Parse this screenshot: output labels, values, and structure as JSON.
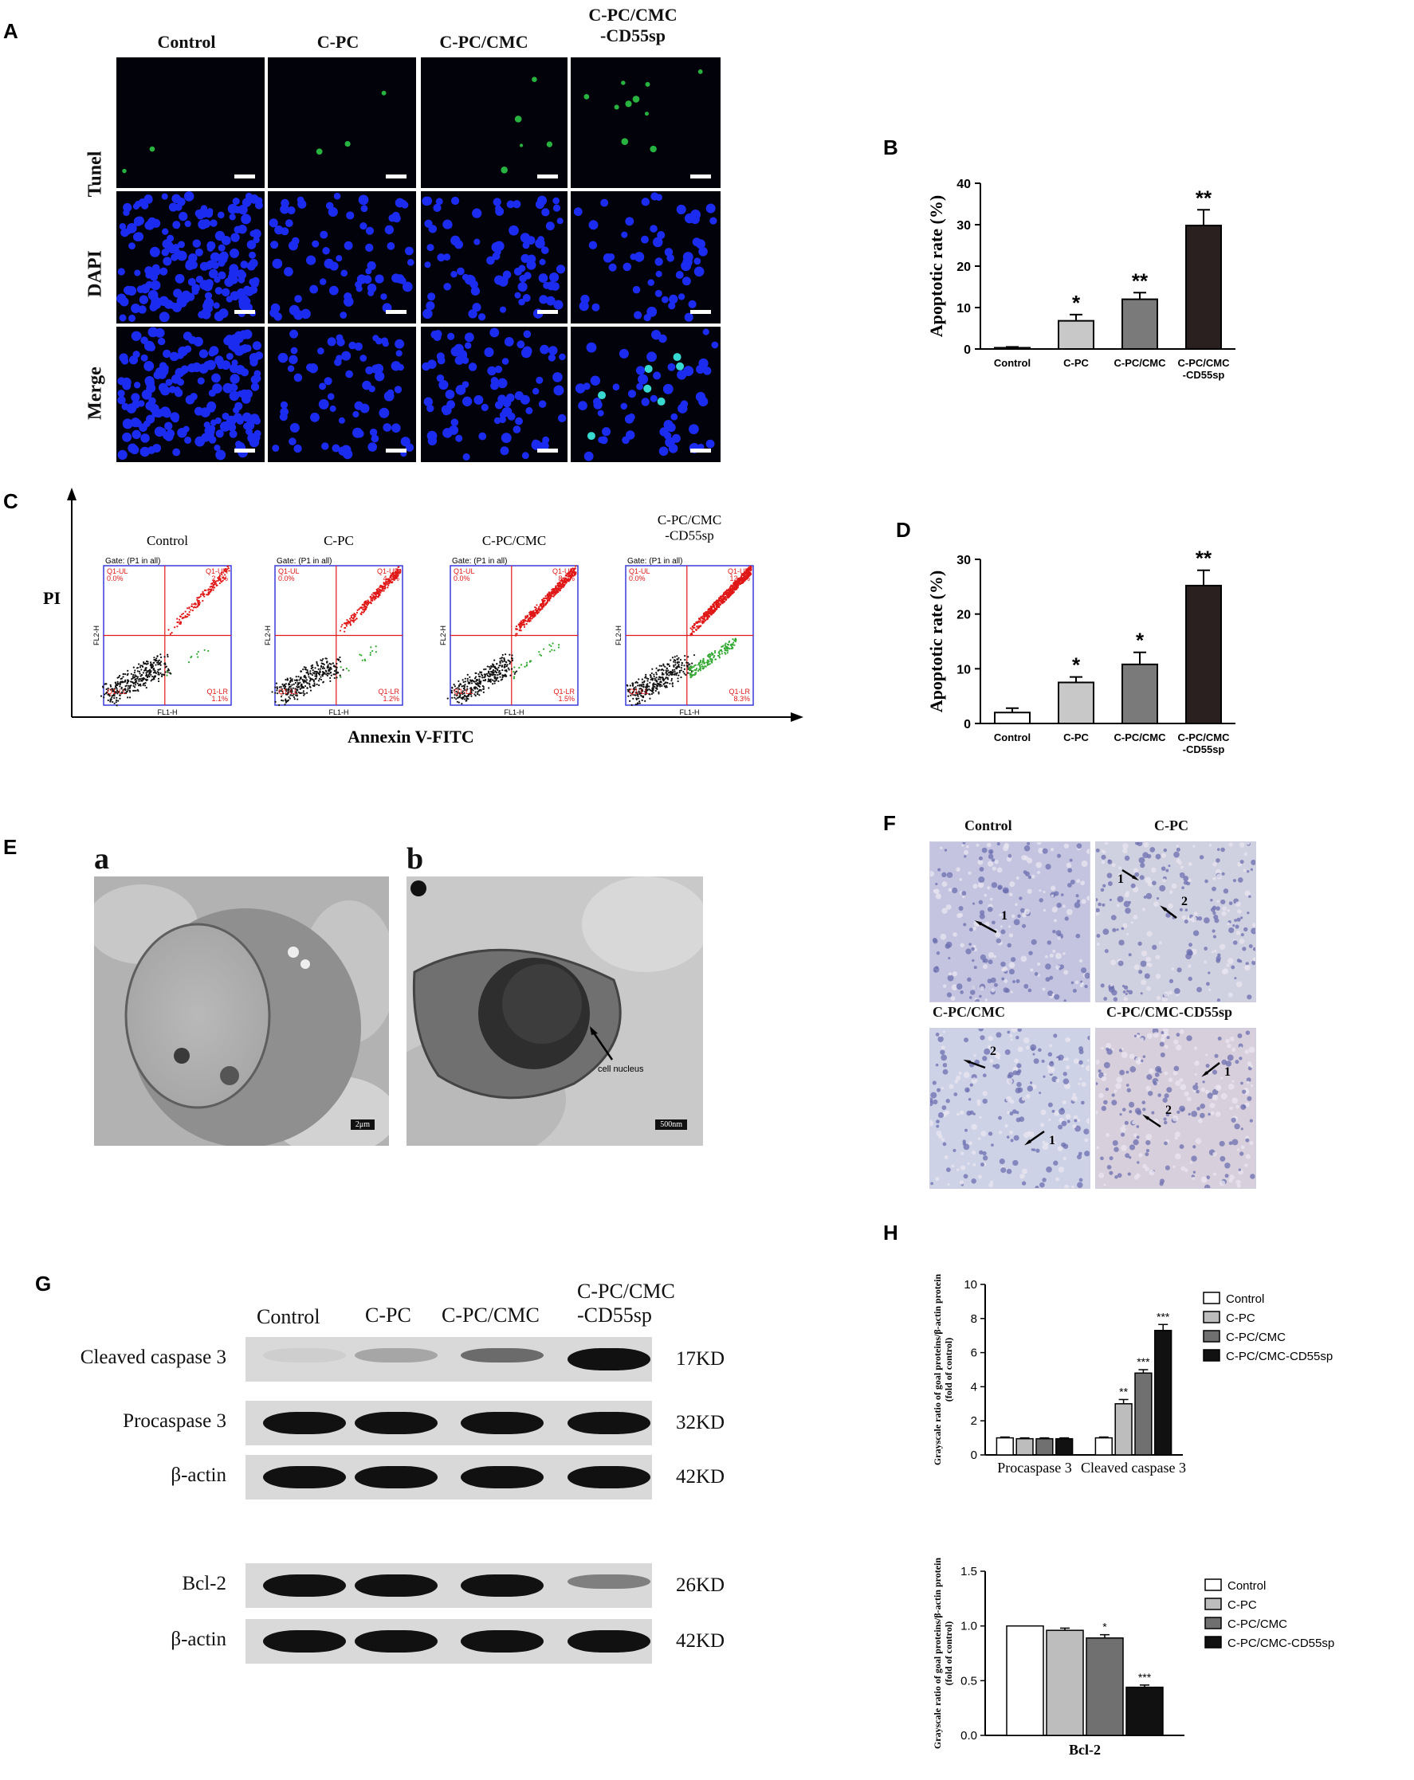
{
  "panels": {
    "A": "A",
    "B": "B",
    "C": "C",
    "D": "D",
    "E": "E",
    "F": "F",
    "G": "G",
    "H": "H"
  },
  "groups": [
    "Control",
    "C-PC",
    "C-PC/CMC",
    "C-PC/CMC\n-CD55sp"
  ],
  "panelA": {
    "rows": [
      "Tunel",
      "DAPI",
      "Merge"
    ],
    "columns": [
      "Control",
      "C-PC",
      "C-PC/CMC",
      "C-PC/CMC\n-CD55sp"
    ]
  },
  "panelB": {
    "chart_data": {
      "type": "bar",
      "categories": [
        "Control",
        "C-PC",
        "C-PC/CMC",
        "C-PC/CMC\n-CD55sp"
      ],
      "values": [
        0.3,
        6.8,
        12.0,
        29.8
      ],
      "errors": [
        0.2,
        1.5,
        1.6,
        3.8
      ],
      "significance": [
        "",
        "*",
        "**",
        "**"
      ],
      "ylabel": "Apoptotic rate (%)",
      "ylim": [
        0,
        40
      ],
      "yticks": [
        0,
        10,
        20,
        30,
        40
      ],
      "colors": [
        "#ffffff",
        "#c8c8c8",
        "#7a7a7a",
        "#2b2020"
      ]
    }
  },
  "panelC": {
    "titles": [
      "Control",
      "C-PC",
      "C-PC/CMC",
      "C-PC/CMC\n-CD55sp"
    ],
    "gate": "Gate: (P1 in all)",
    "ul_label": "Q1-UL",
    "ur_label": "Q1-UR",
    "ll_label": "Q1-LL",
    "lr_label": "Q1-LR",
    "ul_values": [
      "0.0%",
      "0.0%",
      "0.0%",
      "0.0%"
    ],
    "ur_values": [
      "2.6%",
      "4.0%",
      "8.7%",
      "12.1%"
    ],
    "lr_values": [
      "1.1%",
      "1.2%",
      "1.5%",
      "8.3%"
    ],
    "xaxis": "FL1-H",
    "yaxis": "FL2-H",
    "y_title": "PI",
    "x_title": "Annexin V-FITC"
  },
  "panelD": {
    "chart_data": {
      "type": "bar",
      "categories": [
        "Control",
        "C-PC",
        "C-PC/CMC",
        "C-PC/CMC\n-CD55sp"
      ],
      "values": [
        2.0,
        7.5,
        10.8,
        25.2
      ],
      "errors": [
        0.8,
        1.0,
        2.2,
        2.8
      ],
      "significance": [
        "",
        "*",
        "*",
        "**"
      ],
      "ylabel": "Apoptotic rate (%)",
      "ylim": [
        0,
        30
      ],
      "yticks": [
        0,
        10,
        20,
        30
      ],
      "colors": [
        "#ffffff",
        "#c8c8c8",
        "#7a7a7a",
        "#2b2020"
      ]
    }
  },
  "panelE": {
    "sub_a": "a",
    "sub_b": "b",
    "nucleus_label": "cell nucleus",
    "scale_a": "2μm",
    "scale_b": "500nm"
  },
  "panelF": {
    "titles": [
      "Control",
      "C-PC",
      "C-PC/CMC",
      "C-PC/CMC-CD55sp"
    ],
    "arrow_1": "1",
    "arrow_2": "2"
  },
  "panelG": {
    "columns": [
      "Control",
      "C-PC",
      "C-PC/CMC",
      "C-PC/CMC\n-CD55sp"
    ],
    "rows": [
      {
        "label": "Cleaved caspase 3",
        "kd": "17KD"
      },
      {
        "label": "Procaspase 3",
        "kd": "32KD"
      },
      {
        "label": "β-actin",
        "kd": "42KD"
      },
      {
        "label": "Bcl-2",
        "kd": "26KD"
      },
      {
        "label": "β-actin",
        "kd": "42KD"
      }
    ]
  },
  "panelH1": {
    "chart_data": {
      "type": "bar",
      "categories": [
        "Procaspase 3",
        "Cleaved caspase 3"
      ],
      "series": [
        {
          "name": "Control",
          "values": [
            1.0,
            1.0
          ],
          "errors": [
            0.05,
            0.05
          ],
          "sig": [
            "",
            ""
          ]
        },
        {
          "name": "C-PC",
          "values": [
            0.95,
            3.0
          ],
          "errors": [
            0.05,
            0.25
          ],
          "sig": [
            "",
            "**"
          ]
        },
        {
          "name": "C-PC/CMC",
          "values": [
            0.95,
            4.8
          ],
          "errors": [
            0.05,
            0.2
          ],
          "sig": [
            "",
            "***"
          ]
        },
        {
          "name": "C-PC/CMC-CD55sp",
          "values": [
            0.95,
            7.3
          ],
          "errors": [
            0.05,
            0.35
          ],
          "sig": [
            "",
            "***"
          ]
        }
      ],
      "ylabel": "Grayscale ratio of goal proteins/β-actin protein\n(fold of control)",
      "ylim": [
        0,
        10
      ],
      "yticks": [
        0,
        2,
        4,
        6,
        8,
        10
      ],
      "colors": [
        "#ffffff",
        "#bdbdbd",
        "#707070",
        "#111111"
      ]
    }
  },
  "panelH2": {
    "chart_data": {
      "type": "bar",
      "categories": [
        "Bcl-2"
      ],
      "series": [
        {
          "name": "Control",
          "values": [
            1.0
          ],
          "errors": [
            0.0
          ],
          "sig": [
            ""
          ]
        },
        {
          "name": "C-PC",
          "values": [
            0.96
          ],
          "errors": [
            0.02
          ],
          "sig": [
            ""
          ]
        },
        {
          "name": "C-PC/CMC",
          "values": [
            0.89
          ],
          "errors": [
            0.03
          ],
          "sig": [
            "*"
          ]
        },
        {
          "name": "C-PC/CMC-CD55sp",
          "values": [
            0.44
          ],
          "errors": [
            0.02
          ],
          "sig": [
            "***"
          ]
        }
      ],
      "ylabel": "Grayscale ratio of goal proteins/β-actin protein\n(fold of control)",
      "ylim": [
        0,
        1.5
      ],
      "yticks": [
        "0.0",
        "0.5",
        "1.0",
        "1.5"
      ],
      "xlabel": "Bcl-2",
      "colors": [
        "#ffffff",
        "#bdbdbd",
        "#707070",
        "#111111"
      ]
    }
  }
}
